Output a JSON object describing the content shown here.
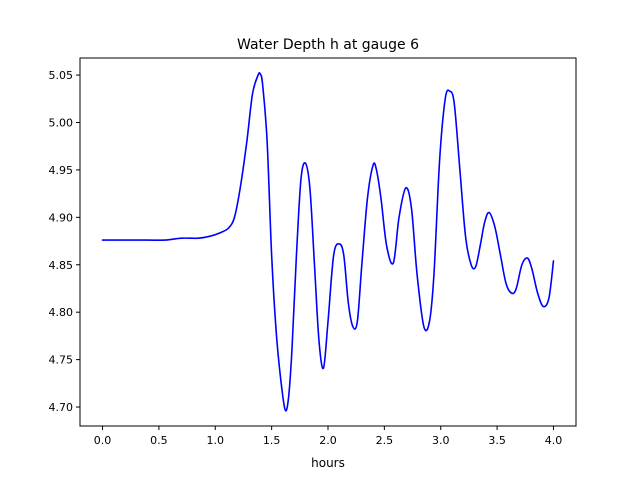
{
  "chart_data": {
    "type": "line",
    "title": "Water Depth h at gauge 6",
    "xlabel": "hours",
    "ylabel": "",
    "xlim": [
      -0.2,
      4.2
    ],
    "ylim": [
      4.68,
      5.068
    ],
    "xticks": [
      0.0,
      0.5,
      1.0,
      1.5,
      2.0,
      2.5,
      3.0,
      3.5,
      4.0
    ],
    "xtick_labels": [
      "0.0",
      "0.5",
      "1.0",
      "1.5",
      "2.0",
      "2.5",
      "3.0",
      "3.5",
      "4.0"
    ],
    "yticks": [
      4.7,
      4.75,
      4.8,
      4.85,
      4.9,
      4.95,
      5.0,
      5.05
    ],
    "ytick_labels": [
      "4.70",
      "4.75",
      "4.80",
      "4.85",
      "4.90",
      "4.95",
      "5.00",
      "5.05"
    ],
    "grid": false,
    "series": [
      {
        "color": "#0000ff",
        "x": [
          0.0,
          0.2,
          0.4,
          0.55,
          0.7,
          0.85,
          0.95,
          1.05,
          1.12,
          1.17,
          1.22,
          1.28,
          1.33,
          1.38,
          1.4,
          1.42,
          1.46,
          1.5,
          1.54,
          1.58,
          1.62,
          1.65,
          1.68,
          1.72,
          1.76,
          1.8,
          1.84,
          1.88,
          1.92,
          1.96,
          2.0,
          2.05,
          2.1,
          2.14,
          2.18,
          2.22,
          2.26,
          2.3,
          2.35,
          2.4,
          2.43,
          2.47,
          2.52,
          2.58,
          2.63,
          2.69,
          2.74,
          2.79,
          2.85,
          2.9,
          2.94,
          2.99,
          3.04,
          3.08,
          3.12,
          3.17,
          3.22,
          3.27,
          3.31,
          3.35,
          3.39,
          3.43,
          3.48,
          3.53,
          3.58,
          3.63,
          3.67,
          3.72,
          3.77,
          3.81,
          3.86,
          3.91,
          3.96,
          4.0
        ],
        "y": [
          4.876,
          4.876,
          4.876,
          4.876,
          4.878,
          4.878,
          4.88,
          4.884,
          4.889,
          4.9,
          4.93,
          4.98,
          5.03,
          5.05,
          5.051,
          5.04,
          4.98,
          4.86,
          4.78,
          4.73,
          4.697,
          4.71,
          4.76,
          4.86,
          4.94,
          4.957,
          4.93,
          4.85,
          4.77,
          4.741,
          4.79,
          4.86,
          4.872,
          4.86,
          4.81,
          4.785,
          4.79,
          4.85,
          4.92,
          4.955,
          4.95,
          4.92,
          4.87,
          4.852,
          4.9,
          4.931,
          4.91,
          4.84,
          4.785,
          4.79,
          4.84,
          4.96,
          5.025,
          5.033,
          5.02,
          4.95,
          4.88,
          4.85,
          4.848,
          4.87,
          4.895,
          4.905,
          4.89,
          4.86,
          4.83,
          4.82,
          4.825,
          4.85,
          4.857,
          4.845,
          4.82,
          4.806,
          4.815,
          4.854
        ]
      }
    ]
  }
}
